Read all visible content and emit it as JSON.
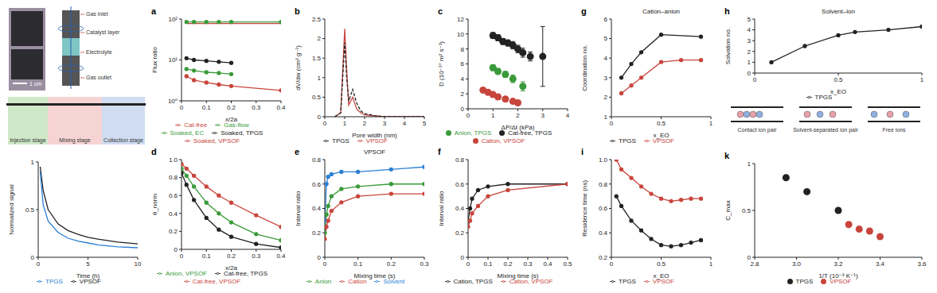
{
  "chart_data": [
    {
      "type": "line",
      "x_label": "Time (h)",
      "y_label": "Normalized signal",
      "x": [
        0.2,
        0.5,
        1,
        2,
        3,
        4,
        5,
        6,
        8,
        10
      ],
      "series": [
        {
          "name": "VPSOF",
          "color": "#222222",
          "marker": "none",
          "values": [
            0.95,
            0.7,
            0.5,
            0.35,
            0.28,
            0.24,
            0.21,
            0.19,
            0.16,
            0.14
          ]
        },
        {
          "name": "TPGS",
          "color": "#2a7fd4",
          "marker": "none",
          "values": [
            0.9,
            0.55,
            0.38,
            0.26,
            0.2,
            0.17,
            0.15,
            0.13,
            0.11,
            0.1
          ]
        }
      ],
      "xlim": [
        0,
        10
      ],
      "ylim": [
        0,
        1
      ],
      "xticks": [
        0,
        5,
        10
      ],
      "yticks": [
        0,
        0.5,
        1
      ],
      "legend": "bottom"
    },
    {
      "type": "line",
      "title": "a",
      "x_label": "x/2a",
      "y_label": "Flux ratio",
      "log": "y",
      "x": [
        0.02,
        0.05,
        0.1,
        0.15,
        0.2,
        0.4
      ],
      "series": [
        {
          "name": "Gas-flow",
          "color": "#3a9a3a",
          "marker": "circle",
          "values": [
            85,
            85,
            85,
            85,
            85,
            85
          ]
        },
        {
          "name": "Cat-free",
          "color": "#c8453c",
          "marker": "none",
          "values": [
            78,
            78,
            78,
            78,
            78,
            78
          ]
        },
        {
          "name": "Soaked, TPGS",
          "color": "#222222",
          "marker": "circle",
          "values": [
            11,
            10,
            9.5,
            9,
            8.5,
            null
          ]
        },
        {
          "name": "Soaked, EC",
          "color": "#3a9a3a",
          "marker": "circle",
          "values": [
            6,
            5.5,
            5,
            4.8,
            4.5,
            null
          ]
        },
        {
          "name": "Soaked, VPSOF",
          "color": "#c8453c",
          "marker": "circle",
          "values": [
            4,
            3.2,
            2.8,
            2.5,
            2.3,
            1.8
          ]
        }
      ],
      "xlim": [
        0,
        0.4
      ],
      "ylim": [
        1,
        100
      ],
      "xticks": [
        0,
        0.1,
        0.2,
        0.3,
        0.4
      ],
      "yticks": [
        {
          "value": 1,
          "label": "10⁰"
        },
        {
          "value": 10,
          "label": "10¹"
        },
        {
          "value": 100,
          "label": "10²"
        }
      ],
      "legend": "bottom"
    },
    {
      "type": "line",
      "title": "d",
      "x_label": "x/2a",
      "y_label": "θ_norm",
      "x": [
        0,
        0.02,
        0.05,
        0.1,
        0.15,
        0.2,
        0.3,
        0.4
      ],
      "series": [
        {
          "name": "Cat-free, VPSOF",
          "color": "#c8453c",
          "marker": "circle",
          "values": [
            0.95,
            0.9,
            0.82,
            0.7,
            0.6,
            0.52,
            0.38,
            0.25
          ]
        },
        {
          "name": "Anion, VPSOF",
          "color": "#3a9a3a",
          "marker": "circle",
          "values": [
            0.9,
            0.82,
            0.7,
            0.52,
            0.4,
            0.3,
            0.17,
            0.1
          ]
        },
        {
          "name": "Cat-free, TPGS",
          "color": "#222222",
          "marker": "circle",
          "values": [
            0.85,
            0.72,
            0.55,
            0.35,
            0.22,
            0.14,
            0.06,
            0.02
          ]
        }
      ],
      "xlim": [
        0,
        0.4
      ],
      "ylim": [
        0,
        1
      ],
      "xticks": [
        0,
        0.1,
        0.2,
        0.3,
        0.4
      ],
      "yticks": [
        0,
        0.2,
        0.4,
        0.6,
        0.8,
        {
          "value": 1,
          "label": "1.0"
        }
      ],
      "legend": "bottom"
    },
    {
      "type": "line",
      "title": "b",
      "x_label": "Pore width (nm)",
      "y_label": "dV/dw (cm³ g⁻¹)",
      "x": [
        0.5,
        0.8,
        1,
        1.1,
        1.2,
        1.4,
        1.6,
        1.8,
        2,
        2.5,
        3,
        4,
        5
      ],
      "series": [
        {
          "name": "VPSOF",
          "color": "#c8453c",
          "marker": "none",
          "values": [
            0,
            0.1,
            2.25,
            1.2,
            0.3,
            0.5,
            0.2,
            0.1,
            0.05,
            0.02,
            0,
            0,
            0
          ]
        },
        {
          "name": "TPGS",
          "color": "#222222",
          "marker": "none",
          "line_style": "dashed",
          "values": [
            0,
            0.1,
            1.9,
            1,
            0.4,
            0.7,
            0.35,
            0.15,
            0.08,
            0.03,
            0,
            0,
            0
          ]
        }
      ],
      "xlim": [
        0,
        5
      ],
      "ylim": [
        0,
        2.5
      ],
      "xticks": [
        0,
        1,
        2,
        3,
        4,
        5
      ],
      "yticks": [
        0,
        0.5,
        1,
        1.5,
        2,
        2.5
      ],
      "legend": "bottom"
    },
    {
      "type": "line",
      "title": "e",
      "subtitle": "VPSOF",
      "x_label": "Mixing time (s)",
      "y_label": "Interval ratio",
      "x": [
        0,
        0.005,
        0.01,
        0.02,
        0.05,
        0.1,
        0.2,
        0.3
      ],
      "series": [
        {
          "name": "Solvent",
          "color": "#2a7fd4",
          "marker": "circle",
          "values": [
            0.3,
            0.6,
            0.66,
            0.68,
            0.7,
            0.7,
            0.72,
            0.74
          ]
        },
        {
          "name": "Anion",
          "color": "#3a9a3a",
          "marker": "circle",
          "values": [
            0.2,
            0.35,
            0.42,
            0.5,
            0.56,
            0.58,
            0.6,
            0.6
          ]
        },
        {
          "name": "Cation",
          "color": "#c8453c",
          "marker": "circle",
          "values": [
            0.15,
            0.25,
            0.3,
            0.38,
            0.45,
            0.5,
            0.52,
            0.52
          ]
        }
      ],
      "xlim": [
        0,
        0.3
      ],
      "ylim": [
        0,
        0.8
      ],
      "xticks": [
        0,
        0.1,
        0.2,
        0.3
      ],
      "yticks": [
        0,
        0.2,
        0.4,
        0.6,
        0.8
      ],
      "legend": "bottom"
    },
    {
      "type": "scatter",
      "title": "c",
      "x_label": "ΔP/Δt (kPa)",
      "y_label": "D (10⁻¹⁰ m² s⁻¹)",
      "series": [
        {
          "name": "Cat-free, TPGS",
          "color": "#222222",
          "marker": "circle",
          "x": [
            1,
            1.2,
            1.4,
            1.6,
            1.8,
            2,
            2.2,
            2.5,
            3
          ],
          "values": [
            9.8,
            9.5,
            9,
            8.8,
            8.5,
            8,
            7.5,
            7,
            7
          ],
          "errors": [
            0.4,
            0.4,
            0.4,
            0.4,
            0.5,
            0.5,
            0.6,
            0.6,
            4
          ]
        },
        {
          "name": "Anion, TPGS",
          "color": "#3a9a3a",
          "marker": "circle",
          "x": [
            1,
            1.2,
            1.5,
            1.8,
            2.2
          ],
          "values": [
            5.5,
            5,
            4.6,
            4,
            3
          ],
          "errors": [
            0.4,
            0.4,
            0.4,
            0.5,
            0.6
          ]
        },
        {
          "name": "Cation, VPSOF",
          "color": "#c8453c",
          "marker": "circle",
          "x": [
            0.6,
            0.8,
            1,
            1.2,
            1.5,
            1.8,
            2
          ],
          "values": [
            2.5,
            2.2,
            1.9,
            1.6,
            1.3,
            1,
            0.8
          ],
          "errors": [
            0.3,
            0.3,
            0.3,
            0.3,
            0.3,
            0.3,
            0.3
          ]
        }
      ],
      "xlim": [
        0,
        4
      ],
      "ylim": [
        0,
        12
      ],
      "xticks": [
        0,
        1,
        2,
        3,
        4
      ],
      "yticks": [
        0,
        2,
        4,
        6,
        8,
        10,
        12
      ],
      "legend": "bottom"
    },
    {
      "type": "line",
      "title": "f",
      "x_label": "Mixing time (s)",
      "y_label": "Interval ratio",
      "x": [
        0,
        0.01,
        0.02,
        0.05,
        0.1,
        0.2,
        0.5
      ],
      "series": [
        {
          "name": "Cation, TPGS",
          "color": "#222222",
          "marker": "circle",
          "values": [
            0.3,
            0.4,
            0.48,
            0.55,
            0.58,
            0.6,
            0.6
          ]
        },
        {
          "name": "Cation, VPSOF",
          "color": "#c8453c",
          "marker": "circle",
          "values": [
            0.25,
            0.3,
            0.36,
            0.42,
            0.5,
            0.55,
            0.6
          ]
        }
      ],
      "xlim": [
        0,
        0.5
      ],
      "ylim": [
        0,
        0.8
      ],
      "xticks": [
        0,
        0.1,
        0.2,
        0.3,
        0.4,
        0.5
      ],
      "yticks": [
        0,
        0.2,
        0.4,
        0.6,
        0.8
      ],
      "legend": "bottom"
    },
    {
      "type": "line",
      "title": "g",
      "subtitle": "Cation–anion",
      "x_label": "x_EO",
      "y_label": "Coordination no.",
      "x": [
        0.1,
        0.2,
        0.3,
        0.5,
        0.7,
        0.9
      ],
      "series": [
        {
          "name": "TPGS",
          "color": "#222222",
          "marker": "circle",
          "values": [
            3,
            3.7,
            4.3,
            5.2,
            null,
            5.1
          ]
        },
        {
          "name": "VPSOF",
          "color": "#c8453c",
          "marker": "circle",
          "values": [
            2.2,
            2.6,
            3,
            3.8,
            3.9,
            3.9
          ]
        }
      ],
      "xlim": [
        0,
        1
      ],
      "ylim": [
        1,
        6
      ],
      "xticks": [
        0,
        0.5,
        1
      ],
      "yticks": [
        1,
        2,
        3,
        4,
        5,
        6
      ],
      "legend": "bottom"
    },
    {
      "type": "line",
      "title": "i",
      "x_label": "x_EO",
      "y_label": "Residence time (ns)",
      "x": [
        0.05,
        0.1,
        0.2,
        0.3,
        0.4,
        0.5,
        0.6,
        0.7,
        0.8,
        0.9
      ],
      "series": [
        {
          "name": "VPSOF",
          "color": "#c8453c",
          "marker": "circle",
          "values": [
            1,
            0.92,
            0.85,
            0.78,
            0.72,
            0.68,
            0.66,
            0.67,
            0.68,
            0.68
          ]
        },
        {
          "name": "TPGS",
          "color": "#222222",
          "marker": "circle",
          "values": [
            0.7,
            0.62,
            0.5,
            0.42,
            0.35,
            0.3,
            0.29,
            0.3,
            0.32,
            0.34
          ]
        }
      ],
      "xlim": [
        0,
        1
      ],
      "ylim": [
        0.2,
        1
      ],
      "xticks": [
        0,
        0.5,
        1
      ],
      "yticks": [
        0.2,
        0.4,
        0.6,
        0.8,
        {
          "value": 1,
          "label": "1.0"
        }
      ],
      "legend": "bottom"
    },
    {
      "type": "line",
      "title": "h",
      "subtitle": "Solvent–ion",
      "x_label": "x_EO",
      "y_label": "Solvation no.",
      "x": [
        0.1,
        0.3,
        0.5,
        0.6,
        0.8,
        1
      ],
      "series": [
        {
          "name": "TPGS",
          "color": "#222222",
          "marker": "circle",
          "values": [
            1,
            2.5,
            3.5,
            3.8,
            4,
            4.3
          ]
        }
      ],
      "xlim": [
        0,
        1
      ],
      "ylim": [
        0,
        5
      ],
      "xticks": [
        0,
        0.5,
        1
      ],
      "yticks": [
        0,
        1,
        2,
        3,
        4,
        5
      ],
      "legend": "bottom"
    },
    {
      "type": "scatter",
      "title": "k",
      "x_label": "1/T (10⁻³ K⁻¹)",
      "y_label": "C_max",
      "series": [
        {
          "name": "TPGS",
          "color": "#222222",
          "marker": "circle",
          "x": [
            2.95,
            3.05,
            3.2
          ],
          "values": [
            0.85,
            0.7,
            0.5
          ]
        },
        {
          "name": "VPSOF",
          "color": "#c8453c",
          "marker": "circle",
          "x": [
            3.25,
            3.3,
            3.35,
            3.4
          ],
          "values": [
            0.35,
            0.3,
            0.28,
            0.22
          ]
        }
      ],
      "xlim": [
        2.8,
        3.6
      ],
      "ylim": [
        0,
        1
      ],
      "xticks": [
        2.8,
        {
          "value": 3,
          "label": "3.0"
        },
        3.2,
        3.4,
        3.6
      ],
      "yticks": [
        0,
        0.5,
        1
      ],
      "legend": "bottom"
    }
  ],
  "diagram": {
    "photo_scale": "1 cm",
    "schematic_labels": [
      "Gas inlet",
      "Catalyst layer",
      "Electrolyte",
      "Gas outlet"
    ],
    "stages": [
      "Injection stage",
      "Mixing stage",
      "Collection stage"
    ],
    "states": [
      "Contact ion pair",
      "Solvent-separated ion pair",
      "Free ions"
    ]
  }
}
